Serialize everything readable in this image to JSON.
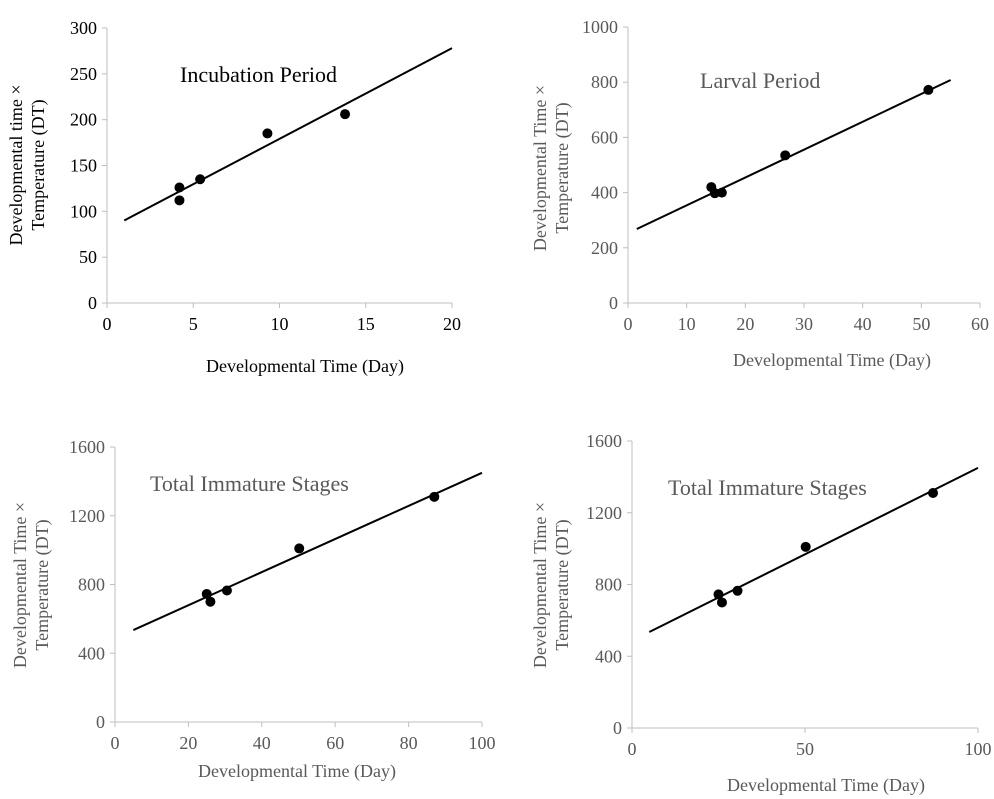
{
  "chart_data": [
    {
      "type": "scatter",
      "title": "Incubation Period",
      "xlabel": "Developmental Time (Day)",
      "ylabel": [
        "Developmental time ×",
        "Temperature (DT)"
      ],
      "xlim": [
        0,
        20
      ],
      "ylim": [
        0,
        300
      ],
      "xticks": [
        0,
        5,
        10,
        15,
        20
      ],
      "yticks": [
        0,
        50,
        100,
        150,
        200,
        250,
        300
      ],
      "points": [
        {
          "x": 4.2,
          "y": 126
        },
        {
          "x": 4.2,
          "y": 112
        },
        {
          "x": 5.4,
          "y": 135
        },
        {
          "x": 9.3,
          "y": 185
        },
        {
          "x": 13.8,
          "y": 206
        }
      ],
      "trendline": {
        "x": [
          1,
          20
        ],
        "y": [
          90,
          278
        ]
      },
      "text_color": "#000000",
      "grid": false
    },
    {
      "type": "scatter",
      "title": "Larval Period",
      "xlabel": "Developmental Time (Day)",
      "ylabel": [
        "Developmental Time ×",
        "Temperature (DT)"
      ],
      "xlim": [
        0,
        60
      ],
      "ylim": [
        0,
        1000
      ],
      "xticks": [
        0,
        10,
        20,
        30,
        40,
        50,
        60
      ],
      "yticks": [
        0,
        200,
        400,
        600,
        800,
        1000
      ],
      "points": [
        {
          "x": 14.2,
          "y": 420
        },
        {
          "x": 14.8,
          "y": 398
        },
        {
          "x": 16.0,
          "y": 400
        },
        {
          "x": 26.8,
          "y": 535
        },
        {
          "x": 51.2,
          "y": 772
        }
      ],
      "trendline": {
        "x": [
          1.5,
          55
        ],
        "y": [
          268,
          808
        ]
      },
      "text_color": "#595959",
      "grid": false
    },
    {
      "type": "scatter",
      "title": "Total Immature Stages",
      "xlabel": "Developmental Time (Day)",
      "ylabel": [
        "Developmental Time ×",
        "Temperature (DT)"
      ],
      "xlim": [
        0,
        100
      ],
      "ylim": [
        0,
        1600
      ],
      "xticks": [
        0,
        20,
        40,
        60,
        80,
        100
      ],
      "yticks": [
        0,
        400,
        800,
        1200,
        1600
      ],
      "points": [
        {
          "x": 25.0,
          "y": 745
        },
        {
          "x": 26.0,
          "y": 700
        },
        {
          "x": 30.5,
          "y": 765
        },
        {
          "x": 50.2,
          "y": 1010
        },
        {
          "x": 87.0,
          "y": 1310
        }
      ],
      "trendline": {
        "x": [
          5,
          100
        ],
        "y": [
          535,
          1450
        ]
      },
      "text_color": "#595959",
      "grid": false
    },
    {
      "type": "scatter",
      "title": "Total Immature Stages",
      "xlabel": "Developmental Time (Day)",
      "ylabel": [
        "Developmental Time ×",
        "Temperature (DT)"
      ],
      "xlim": [
        0,
        100
      ],
      "ylim": [
        0,
        1600
      ],
      "xticks": [
        0,
        50,
        100
      ],
      "yticks": [
        0,
        400,
        800,
        1200,
        1600
      ],
      "points": [
        {
          "x": 25.0,
          "y": 745
        },
        {
          "x": 26.0,
          "y": 700
        },
        {
          "x": 30.5,
          "y": 765
        },
        {
          "x": 50.2,
          "y": 1010
        },
        {
          "x": 87.0,
          "y": 1310
        }
      ],
      "trendline": {
        "x": [
          5,
          100
        ],
        "y": [
          535,
          1450
        ]
      },
      "text_color": "#595959",
      "grid": false
    }
  ]
}
